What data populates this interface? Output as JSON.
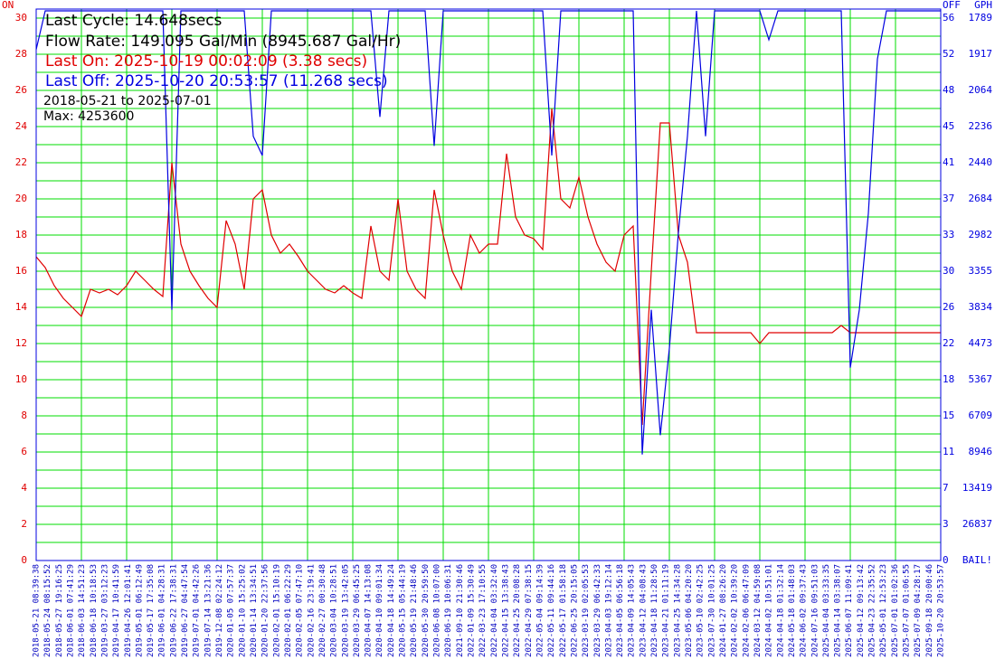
{
  "chart_data": {
    "type": "line",
    "left_label": "ON",
    "right_label": "OFF",
    "right_label2": "GPH",
    "info_lines": [
      "Last Cycle: 14.648secs",
      "Flow Rate: 149.095 Gal/Min (8945.687 Gal/Hr)",
      "Last On: 2025-10-19 00:02:09 (3.38 secs)",
      "Last Off: 2025-10-20 20:53:57 (11.268 secs)",
      "2018-05-21 to 2025-07-01",
      "Max: 4253600"
    ],
    "ylim": [
      0,
      30.5
    ],
    "yticks": [
      0,
      2,
      4,
      6,
      8,
      10,
      12,
      14,
      16,
      18,
      20,
      22,
      24,
      26,
      28,
      30
    ],
    "y2lim": [
      0,
      57.1875
    ],
    "y2_labels_off": [
      0,
      3,
      7,
      11,
      15,
      18,
      22,
      26,
      30,
      33,
      37,
      41,
      45,
      48,
      52,
      56
    ],
    "y2_labels_gph": [
      "BAIL!",
      26837,
      13419,
      8946,
      6709,
      5367,
      4473,
      3834,
      3355,
      2982,
      2684,
      2440,
      2236,
      2064,
      1917,
      1789
    ],
    "grid": true,
    "xtick_labels": [
      "2018-05-21 08:39:38",
      "2018-05-24 08:15:52",
      "2018-05-27 19:16:25",
      "2018-06-01 07:41:29",
      "2018-06-03 14:51:23",
      "2018-06-18 10:18:53",
      "2019-03-27 03:12:23",
      "2019-04-17 10:41:59",
      "2019-04-26 12:01:41",
      "2019-05-01 06:12:49",
      "2019-05-17 17:35:08",
      "2019-06-01 04:28:31",
      "2019-06-22 17:38:31",
      "2019-06-27 04:47:54",
      "2019-07-01 04:42:26",
      "2019-07-14 13:21:36",
      "2019-12-08 02:24:12",
      "2020-01-05 07:57:37",
      "2020-01-10 15:25:02",
      "2020-01-14 13:34:51",
      "2020-01-20 22:37:56",
      "2020-02-01 15:10:19",
      "2020-02-01 06:22:29",
      "2020-02-05 07:47:10",
      "2020-02-16 23:19:41",
      "2020-02-27 00:30:48",
      "2020-03-04 10:28:51",
      "2020-03-19 13:42:05",
      "2020-03-29 06:45:25",
      "2020-04-07 14:13:08",
      "2020-04-10 09:01:34",
      "2020-04-18 14:49:24",
      "2020-05-15 05:44:19",
      "2020-05-19 21:48:46",
      "2020-05-30 20:59:50",
      "2020-06-08 10:07:00",
      "2020-06-19 10:06:31",
      "2021-09-10 21:30:46",
      "2022-01-09 15:30:49",
      "2022-03-23 17:10:55",
      "2022-04-04 03:32:40",
      "2022-04-15 13:38:43",
      "2022-04-25 20:08:28",
      "2022-04-29 07:38:15",
      "2022-05-04 09:14:39",
      "2022-05-11 09:44:16",
      "2022-05-17 01:58:18",
      "2022-06-25 20:15:05",
      "2023-03-19 02:05:53",
      "2023-03-29 06:42:33",
      "2023-04-03 19:12:14",
      "2023-04-05 06:56:18",
      "2023-04-09 14:05:43",
      "2023-04-12 04:08:43",
      "2023-04-18 11:28:50",
      "2023-04-21 01:11:19",
      "2023-04-25 14:34:28",
      "2023-05-06 04:20:20",
      "2023-05-10 02:42:25",
      "2023-07-30 10:01:25",
      "2024-01-27 08:26:20",
      "2024-02-02 10:39:20",
      "2024-02-06 06:47:09",
      "2024-03-12 04:59:08",
      "2024-04-02 10:51:01",
      "2024-04-18 01:32:14",
      "2024-05-18 01:48:03",
      "2024-06-02 09:37:43",
      "2024-07-16 09:51:03",
      "2025-04-04 03:33:35",
      "2025-04-14 03:38:07",
      "2025-06-07 11:09:41",
      "2025-04-12 09:13:42",
      "2025-04-23 22:35:52",
      "2025-05-01 12:53:23",
      "2025-07-01 01:02:36",
      "2025-07-07 01:06:55",
      "2025-07-09 04:28:17",
      "2025-09-18 20:00:46",
      "2025-10-20 20:53:57"
    ],
    "series": [
      {
        "name": "ON",
        "color": "#e00000",
        "axis": "y",
        "values": [
          16.8,
          16.2,
          15.2,
          14.5,
          14.0,
          13.5,
          15.0,
          14.8,
          15.0,
          14.7,
          15.2,
          16.0,
          15.5,
          15.0,
          14.6,
          22.0,
          17.5,
          16.0,
          15.2,
          14.5,
          14.0,
          18.8,
          17.5,
          15.0,
          20.0,
          20.5,
          18.0,
          17.0,
          17.5,
          16.8,
          16.0,
          15.5,
          15.0,
          14.8,
          15.2,
          14.8,
          14.5,
          18.5,
          16.0,
          15.5,
          20.0,
          16.0,
          15.0,
          14.5,
          20.5,
          18.0,
          16.0,
          15.0,
          18.0,
          17.0,
          17.5,
          17.5,
          22.5,
          19.0,
          18.0,
          17.8,
          17.2,
          25.0,
          20.0,
          19.5,
          21.2,
          19.0,
          17.5,
          16.5,
          16.0,
          18.0,
          18.5,
          7.5,
          16.0,
          24.2,
          24.2,
          18.0,
          16.5,
          12.6,
          12.6,
          12.6,
          12.6,
          12.6,
          12.6,
          12.6,
          12.0,
          12.6,
          12.6,
          12.6,
          12.6,
          12.6,
          12.6,
          12.6,
          12.6,
          13.0,
          12.6,
          12.6,
          12.6,
          12.6,
          12.6,
          12.6,
          12.6,
          12.6,
          12.6,
          12.6,
          12.6
        ]
      },
      {
        "name": "OFF",
        "color": "#0000e0",
        "axis": "y2",
        "values": [
          53,
          57,
          57,
          57,
          57,
          57,
          57,
          57,
          57,
          57,
          57,
          57,
          57,
          57,
          57,
          26,
          57,
          57,
          57,
          57,
          57,
          57,
          57,
          57,
          44,
          42,
          57,
          57,
          57,
          57,
          57,
          57,
          57,
          57,
          57,
          57,
          57,
          57,
          46,
          57,
          57,
          57,
          57,
          57,
          43,
          57,
          57,
          57,
          57,
          57,
          57,
          57,
          57,
          57,
          57,
          57,
          57,
          42,
          57,
          57,
          57,
          57,
          57,
          57,
          57,
          57,
          57,
          11,
          26,
          13,
          22,
          34,
          44,
          57,
          44,
          57,
          57,
          57,
          57,
          57,
          57,
          54,
          57,
          57,
          57,
          57,
          57,
          57,
          57,
          57,
          20,
          26,
          36,
          52,
          57,
          57,
          57,
          57,
          57,
          57,
          57
        ]
      }
    ]
  }
}
